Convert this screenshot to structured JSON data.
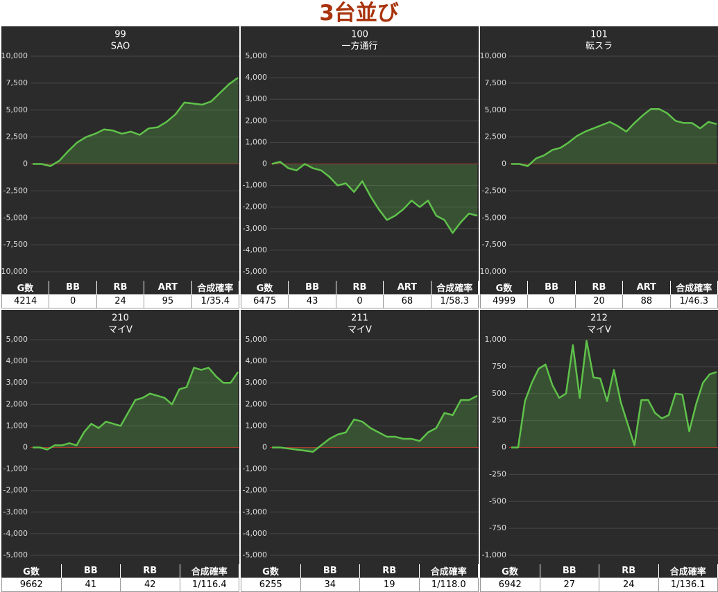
{
  "title": "3台並び",
  "chart_data": [
    {
      "type": "line",
      "title": "99",
      "subtitle": "SAO",
      "color": "#5fc24a",
      "ylim": [
        -10000,
        10000
      ],
      "yticks": [
        {
          "value": -10000,
          "label": "-10,000"
        },
        {
          "value": -7500,
          "label": "-7,500"
        },
        {
          "value": -5000,
          "label": "-5,000"
        },
        {
          "value": -2500,
          "label": "-2,500"
        },
        0,
        {
          "value": 2500,
          "label": "2,500"
        },
        {
          "value": 5000,
          "label": "5,000"
        },
        {
          "value": 7500,
          "label": "7,500"
        },
        {
          "value": 10000,
          "label": "10,000"
        }
      ],
      "values": [
        0,
        0,
        -200,
        300,
        1200,
        2000,
        2500,
        2800,
        3200,
        3100,
        2800,
        3000,
        2700,
        3300,
        3400,
        3900,
        4600,
        5700,
        5600,
        5500,
        5800,
        6600,
        7400,
        8000
      ],
      "table": {
        "headers": [
          "G数",
          "BB",
          "RB",
          "ART",
          "合成確率"
        ],
        "row": [
          4214,
          0,
          24,
          95,
          "1/35.4"
        ]
      }
    },
    {
      "type": "line",
      "title": "100",
      "subtitle": "一方通行",
      "color": "#5fc24a",
      "ylim": [
        -5000,
        5000
      ],
      "yticks": [
        {
          "value": -5000,
          "label": "-5,000"
        },
        {
          "value": -4000,
          "label": "-4,000"
        },
        {
          "value": -3000,
          "label": "-3,000"
        },
        {
          "value": -2000,
          "label": "-2,000"
        },
        {
          "value": -1000,
          "label": "-1,000"
        },
        0,
        {
          "value": 1000,
          "label": "1,000"
        },
        {
          "value": 2000,
          "label": "2,000"
        },
        {
          "value": 3000,
          "label": "3,000"
        },
        {
          "value": 4000,
          "label": "4,000"
        },
        {
          "value": 5000,
          "label": "5,000"
        }
      ],
      "values": [
        0,
        100,
        -200,
        -300,
        0,
        -200,
        -300,
        -600,
        -1000,
        -900,
        -1300,
        -800,
        -1500,
        -2100,
        -2600,
        -2400,
        -2100,
        -1700,
        -2000,
        -1700,
        -2400,
        -2600,
        -3200,
        -2700,
        -2300,
        -2400
      ],
      "table": {
        "headers": [
          "G数",
          "BB",
          "RB",
          "ART",
          "合成確率"
        ],
        "row": [
          6475,
          43,
          0,
          68,
          "1/58.3"
        ]
      }
    },
    {
      "type": "line",
      "title": "101",
      "subtitle": "転スラ",
      "color": "#5fc24a",
      "ylim": [
        -10000,
        10000
      ],
      "yticks": [
        {
          "value": -10000,
          "label": "-10,000"
        },
        {
          "value": -7500,
          "label": "-7,500"
        },
        {
          "value": -5000,
          "label": "-5,000"
        },
        {
          "value": -2500,
          "label": "-2,500"
        },
        0,
        {
          "value": 2500,
          "label": "2,500"
        },
        {
          "value": 5000,
          "label": "5,000"
        },
        {
          "value": 7500,
          "label": "7,500"
        },
        {
          "value": 10000,
          "label": "10,000"
        }
      ],
      "values": [
        0,
        0,
        -200,
        500,
        800,
        1300,
        1500,
        2000,
        2600,
        3000,
        3300,
        3600,
        3900,
        3500,
        3000,
        3800,
        4500,
        5100,
        5100,
        4700,
        4000,
        3800,
        3800,
        3300,
        3900,
        3700
      ],
      "table": {
        "headers": [
          "G数",
          "BB",
          "RB",
          "ART",
          "合成確率"
        ],
        "row": [
          4999,
          0,
          20,
          88,
          "1/46.3"
        ]
      }
    },
    {
      "type": "line",
      "title": "210",
      "subtitle": "マイV",
      "color": "#5fc24a",
      "ylim": [
        -5000,
        5000
      ],
      "yticks": [
        {
          "value": -5000,
          "label": "-5,000"
        },
        {
          "value": -4000,
          "label": "-4,000"
        },
        {
          "value": -3000,
          "label": "-3,000"
        },
        {
          "value": -2000,
          "label": "-2,000"
        },
        {
          "value": -1000,
          "label": "-1,000"
        },
        0,
        {
          "value": 1000,
          "label": "1,000"
        },
        {
          "value": 2000,
          "label": "2,000"
        },
        {
          "value": 3000,
          "label": "3,000"
        },
        {
          "value": 4000,
          "label": "4,000"
        },
        {
          "value": 5000,
          "label": "5,000"
        }
      ],
      "values": [
        0,
        0,
        -100,
        100,
        100,
        200,
        100,
        700,
        1100,
        900,
        1200,
        1100,
        1000,
        1600,
        2200,
        2300,
        2500,
        2400,
        2300,
        2000,
        2700,
        2800,
        3700,
        3600,
        3700,
        3300,
        3000,
        3000,
        3500
      ],
      "table": {
        "headers": [
          "G数",
          "BB",
          "RB",
          "合成確率"
        ],
        "row": [
          9662,
          41,
          42,
          "1/116.4"
        ]
      }
    },
    {
      "type": "line",
      "title": "211",
      "subtitle": "マイV",
      "color": "#5fc24a",
      "ylim": [
        -5000,
        5000
      ],
      "yticks": [
        {
          "value": -5000,
          "label": "-5,000"
        },
        {
          "value": -4000,
          "label": "-4,000"
        },
        {
          "value": -3000,
          "label": "-3,000"
        },
        {
          "value": -2000,
          "label": "-2,000"
        },
        {
          "value": -1000,
          "label": "-1,000"
        },
        0,
        {
          "value": 1000,
          "label": "1,000"
        },
        {
          "value": 2000,
          "label": "2,000"
        },
        {
          "value": 3000,
          "label": "3,000"
        },
        {
          "value": 4000,
          "label": "4,000"
        },
        {
          "value": 5000,
          "label": "5,000"
        }
      ],
      "values": [
        0,
        0,
        -50,
        -100,
        -150,
        -200,
        100,
        400,
        600,
        700,
        1300,
        1200,
        900,
        700,
        500,
        500,
        400,
        400,
        300,
        700,
        900,
        1600,
        1500,
        2200,
        2200,
        2400
      ],
      "table": {
        "headers": [
          "G数",
          "BB",
          "RB",
          "合成確率"
        ],
        "row": [
          6255,
          34,
          19,
          "1/118.0"
        ]
      }
    },
    {
      "type": "line",
      "title": "212",
      "subtitle": "マイV",
      "color": "#5fc24a",
      "ylim": [
        -1000,
        1000
      ],
      "yticks": [
        {
          "value": -1000,
          "label": "-1,000"
        },
        -750,
        -500,
        -250,
        0,
        250,
        500,
        750,
        {
          "value": 1000,
          "label": "1,000"
        }
      ],
      "values": [
        0,
        0,
        430,
        600,
        730,
        770,
        580,
        460,
        500,
        950,
        460,
        990,
        650,
        640,
        430,
        720,
        420,
        220,
        20,
        440,
        440,
        320,
        270,
        300,
        500,
        490,
        150,
        400,
        600,
        680,
        700
      ],
      "table": {
        "headers": [
          "G数",
          "BB",
          "RB",
          "合成確率"
        ],
        "row": [
          6942,
          27,
          24,
          "1/136.1"
        ]
      }
    }
  ]
}
